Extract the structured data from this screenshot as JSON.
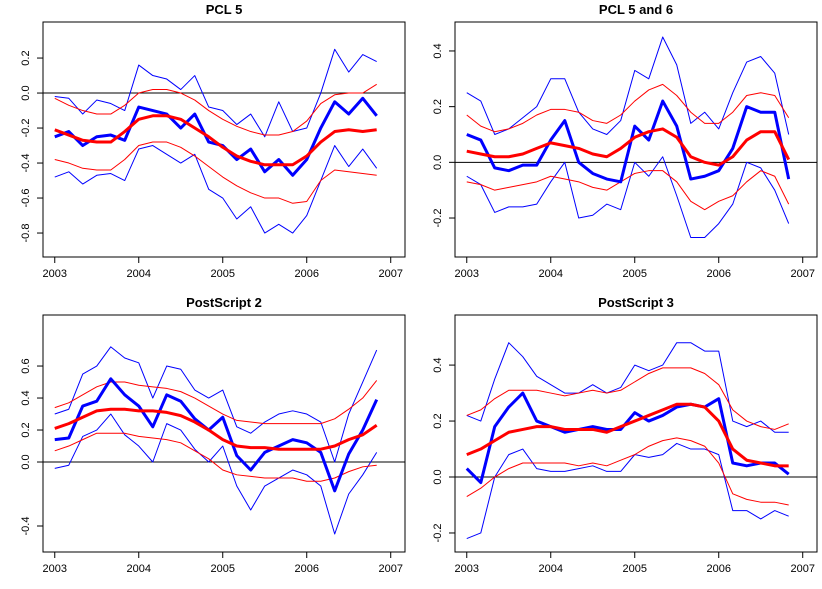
{
  "chart_data": [
    {
      "type": "line",
      "title": "PCL 5",
      "x": [
        2003,
        2003.167,
        2003.333,
        2003.5,
        2003.667,
        2003.833,
        2004,
        2004.167,
        2004.333,
        2004.5,
        2004.667,
        2004.833,
        2005,
        2005.167,
        2005.333,
        2005.5,
        2005.667,
        2005.833,
        2006,
        2006.167,
        2006.333,
        2006.5,
        2006.667,
        2006.833
      ],
      "xlim": [
        2002.86,
        2007.17
      ],
      "xticks": [
        2003,
        2004,
        2005,
        2006,
        2007
      ],
      "ylim": [
        -0.937,
        0.406
      ],
      "yticks": [
        0.2,
        {
          "value": 0,
          "label": "0.0"
        },
        -0.2,
        -0.4,
        -0.6,
        -0.8
      ],
      "hline": 0,
      "series": [
        {
          "color": "#0000ff",
          "linewidth": 1,
          "values": [
            -0.02,
            -0.03,
            -0.12,
            -0.04,
            -0.06,
            -0.1,
            0.16,
            0.1,
            0.08,
            0.02,
            0.1,
            -0.08,
            -0.1,
            -0.18,
            -0.12,
            -0.25,
            -0.05,
            -0.22,
            -0.2,
            0.0,
            0.25,
            0.12,
            0.22,
            0.18
          ]
        },
        {
          "color": "#0000ff",
          "linewidth": 1,
          "values": [
            -0.48,
            -0.45,
            -0.52,
            -0.47,
            -0.46,
            -0.5,
            -0.32,
            -0.3,
            -0.35,
            -0.4,
            -0.35,
            -0.55,
            -0.6,
            -0.72,
            -0.65,
            -0.8,
            -0.75,
            -0.8,
            -0.7,
            -0.5,
            -0.3,
            -0.42,
            -0.32,
            -0.43
          ]
        },
        {
          "color": "#ff0000",
          "linewidth": 1,
          "values": [
            -0.03,
            -0.07,
            -0.1,
            -0.12,
            -0.12,
            -0.07,
            0.0,
            0.02,
            0.02,
            0.0,
            -0.04,
            -0.1,
            -0.15,
            -0.19,
            -0.22,
            -0.24,
            -0.24,
            -0.22,
            -0.16,
            -0.06,
            -0.01,
            0.0,
            0.0,
            0.05
          ]
        },
        {
          "color": "#ff0000",
          "linewidth": 1,
          "values": [
            -0.38,
            -0.4,
            -0.43,
            -0.44,
            -0.44,
            -0.38,
            -0.3,
            -0.28,
            -0.28,
            -0.31,
            -0.36,
            -0.42,
            -0.48,
            -0.53,
            -0.57,
            -0.6,
            -0.6,
            -0.63,
            -0.62,
            -0.5,
            -0.44,
            -0.45,
            -0.46,
            -0.47
          ]
        },
        {
          "color": "#0000ff",
          "linewidth": 3,
          "values": [
            -0.25,
            -0.22,
            -0.3,
            -0.25,
            -0.24,
            -0.27,
            -0.08,
            -0.1,
            -0.12,
            -0.2,
            -0.12,
            -0.28,
            -0.3,
            -0.38,
            -0.32,
            -0.45,
            -0.38,
            -0.47,
            -0.38,
            -0.2,
            -0.05,
            -0.12,
            -0.03,
            -0.13
          ]
        },
        {
          "color": "#ff0000",
          "linewidth": 3,
          "values": [
            -0.21,
            -0.24,
            -0.27,
            -0.28,
            -0.28,
            -0.22,
            -0.15,
            -0.13,
            -0.13,
            -0.15,
            -0.2,
            -0.25,
            -0.31,
            -0.36,
            -0.39,
            -0.41,
            -0.41,
            -0.41,
            -0.36,
            -0.28,
            -0.22,
            -0.21,
            -0.22,
            -0.21
          ]
        }
      ]
    },
    {
      "type": "line",
      "title": "PCL 5 and 6",
      "x": [
        2003,
        2003.167,
        2003.333,
        2003.5,
        2003.667,
        2003.833,
        2004,
        2004.167,
        2004.333,
        2004.5,
        2004.667,
        2004.833,
        2005,
        2005.167,
        2005.333,
        2005.5,
        2005.667,
        2005.833,
        2006,
        2006.167,
        2006.333,
        2006.5,
        2006.667,
        2006.833
      ],
      "xlim": [
        2002.86,
        2007.17
      ],
      "xticks": [
        2003,
        2004,
        2005,
        2006,
        2007
      ],
      "ylim": [
        -0.34,
        0.504
      ],
      "yticks": [
        0.4,
        0.2,
        {
          "value": 0,
          "label": "0.0"
        },
        -0.2
      ],
      "hline": 0,
      "series": [
        {
          "color": "#0000ff",
          "linewidth": 1,
          "values": [
            0.25,
            0.22,
            0.1,
            0.12,
            0.16,
            0.2,
            0.3,
            0.3,
            0.18,
            0.12,
            0.1,
            0.15,
            0.33,
            0.3,
            0.45,
            0.35,
            0.14,
            0.18,
            0.12,
            0.25,
            0.36,
            0.38,
            0.32,
            0.1
          ]
        },
        {
          "color": "#0000ff",
          "linewidth": 1,
          "values": [
            -0.05,
            -0.08,
            -0.18,
            -0.16,
            -0.16,
            -0.15,
            -0.07,
            0.0,
            -0.2,
            -0.19,
            -0.15,
            -0.17,
            0.0,
            -0.05,
            0.02,
            -0.12,
            -0.27,
            -0.27,
            -0.22,
            -0.15,
            0.0,
            -0.02,
            -0.1,
            -0.22
          ]
        },
        {
          "color": "#ff0000",
          "linewidth": 1,
          "values": [
            0.17,
            0.13,
            0.11,
            0.12,
            0.14,
            0.17,
            0.19,
            0.19,
            0.18,
            0.15,
            0.14,
            0.17,
            0.22,
            0.26,
            0.28,
            0.24,
            0.18,
            0.14,
            0.14,
            0.18,
            0.24,
            0.25,
            0.24,
            0.16
          ]
        },
        {
          "color": "#ff0000",
          "linewidth": 1,
          "values": [
            -0.07,
            -0.08,
            -0.1,
            -0.09,
            -0.08,
            -0.07,
            -0.05,
            -0.06,
            -0.07,
            -0.09,
            -0.1,
            -0.07,
            -0.04,
            -0.03,
            -0.03,
            -0.07,
            -0.14,
            -0.17,
            -0.14,
            -0.12,
            -0.07,
            -0.03,
            -0.05,
            -0.15
          ]
        },
        {
          "color": "#0000ff",
          "linewidth": 3,
          "values": [
            0.1,
            0.08,
            -0.02,
            -0.03,
            -0.01,
            -0.01,
            0.08,
            0.15,
            0.0,
            -0.04,
            -0.06,
            -0.07,
            0.13,
            0.08,
            0.22,
            0.13,
            -0.06,
            -0.05,
            -0.03,
            0.05,
            0.2,
            0.18,
            0.18,
            -0.06
          ]
        },
        {
          "color": "#ff0000",
          "linewidth": 3,
          "values": [
            0.04,
            0.03,
            0.02,
            0.02,
            0.03,
            0.05,
            0.07,
            0.06,
            0.05,
            0.03,
            0.02,
            0.05,
            0.09,
            0.11,
            0.12,
            0.09,
            0.02,
            0.0,
            -0.01,
            0.02,
            0.08,
            0.11,
            0.11,
            0.01
          ]
        }
      ]
    },
    {
      "type": "line",
      "title": "PostScript 2",
      "x": [
        2003,
        2003.167,
        2003.333,
        2003.5,
        2003.667,
        2003.833,
        2004,
        2004.167,
        2004.333,
        2004.5,
        2004.667,
        2004.833,
        2005,
        2005.167,
        2005.333,
        2005.5,
        2005.667,
        2005.833,
        2006,
        2006.167,
        2006.333,
        2006.5,
        2006.667,
        2006.833
      ],
      "xlim": [
        2002.86,
        2007.17
      ],
      "xticks": [
        2003,
        2004,
        2005,
        2006,
        2007
      ],
      "ylim": [
        -0.5625,
        0.919
      ],
      "yticks": [
        0.6,
        0.4,
        0.2,
        {
          "value": 0,
          "label": "0.0"
        },
        -0.4
      ],
      "hline": 0,
      "series": [
        {
          "color": "#0000ff",
          "linewidth": 1,
          "values": [
            0.3,
            0.33,
            0.55,
            0.6,
            0.72,
            0.65,
            0.62,
            0.4,
            0.6,
            0.58,
            0.45,
            0.4,
            0.45,
            0.22,
            0.18,
            0.25,
            0.3,
            0.32,
            0.3,
            0.25,
            0.0,
            0.3,
            0.5,
            0.7
          ]
        },
        {
          "color": "#0000ff",
          "linewidth": 1,
          "values": [
            -0.04,
            -0.02,
            0.16,
            0.2,
            0.3,
            0.17,
            0.1,
            0.0,
            0.24,
            0.2,
            0.08,
            0.0,
            0.1,
            -0.15,
            -0.3,
            -0.15,
            -0.1,
            -0.05,
            -0.08,
            -0.15,
            -0.45,
            -0.2,
            -0.08,
            0.06
          ]
        },
        {
          "color": "#ff0000",
          "linewidth": 1,
          "values": [
            0.34,
            0.37,
            0.42,
            0.47,
            0.5,
            0.5,
            0.48,
            0.47,
            0.46,
            0.44,
            0.4,
            0.35,
            0.3,
            0.26,
            0.25,
            0.24,
            0.24,
            0.24,
            0.24,
            0.24,
            0.27,
            0.33,
            0.4,
            0.51
          ]
        },
        {
          "color": "#ff0000",
          "linewidth": 1,
          "values": [
            0.07,
            0.1,
            0.14,
            0.18,
            0.18,
            0.18,
            0.16,
            0.15,
            0.14,
            0.12,
            0.07,
            0.02,
            -0.05,
            -0.08,
            -0.09,
            -0.1,
            -0.1,
            -0.1,
            -0.12,
            -0.12,
            -0.1,
            -0.06,
            -0.03,
            -0.02
          ]
        },
        {
          "color": "#0000ff",
          "linewidth": 3,
          "values": [
            0.14,
            0.15,
            0.35,
            0.38,
            0.52,
            0.42,
            0.35,
            0.22,
            0.42,
            0.38,
            0.27,
            0.2,
            0.28,
            0.04,
            -0.05,
            0.06,
            0.1,
            0.14,
            0.12,
            0.06,
            -0.18,
            0.05,
            0.2,
            0.39
          ]
        },
        {
          "color": "#ff0000",
          "linewidth": 3,
          "values": [
            0.21,
            0.24,
            0.28,
            0.32,
            0.33,
            0.33,
            0.32,
            0.32,
            0.31,
            0.29,
            0.25,
            0.2,
            0.14,
            0.1,
            0.09,
            0.09,
            0.08,
            0.08,
            0.08,
            0.08,
            0.1,
            0.14,
            0.17,
            0.23
          ]
        }
      ]
    },
    {
      "type": "line",
      "title": "PostScript 3",
      "x": [
        2003,
        2003.167,
        2003.333,
        2003.5,
        2003.667,
        2003.833,
        2004,
        2004.167,
        2004.333,
        2004.5,
        2004.667,
        2004.833,
        2005,
        2005.167,
        2005.333,
        2005.5,
        2005.667,
        2005.833,
        2006,
        2006.167,
        2006.333,
        2006.5,
        2006.667,
        2006.833
      ],
      "xlim": [
        2002.86,
        2007.17
      ],
      "xticks": [
        2003,
        2004,
        2005,
        2006,
        2007
      ],
      "ylim": [
        -0.268,
        0.579
      ],
      "yticks": [
        0.4,
        0.2,
        {
          "value": 0,
          "label": "0.0"
        },
        -0.2
      ],
      "hline": 0,
      "series": [
        {
          "color": "#0000ff",
          "linewidth": 1,
          "values": [
            0.22,
            0.2,
            0.35,
            0.48,
            0.43,
            0.36,
            0.33,
            0.3,
            0.3,
            0.33,
            0.3,
            0.32,
            0.4,
            0.38,
            0.4,
            0.48,
            0.48,
            0.45,
            0.45,
            0.2,
            0.18,
            0.2,
            0.16,
            0.16
          ]
        },
        {
          "color": "#0000ff",
          "linewidth": 1,
          "values": [
            -0.22,
            -0.2,
            0.0,
            0.08,
            0.1,
            0.03,
            0.02,
            0.02,
            0.03,
            0.04,
            0.02,
            0.02,
            0.08,
            0.07,
            0.08,
            0.12,
            0.1,
            0.1,
            0.08,
            -0.12,
            -0.12,
            -0.15,
            -0.12,
            -0.14
          ]
        },
        {
          "color": "#ff0000",
          "linewidth": 1,
          "values": [
            0.22,
            0.24,
            0.28,
            0.31,
            0.31,
            0.31,
            0.3,
            0.29,
            0.3,
            0.31,
            0.3,
            0.31,
            0.34,
            0.37,
            0.39,
            0.39,
            0.39,
            0.37,
            0.33,
            0.24,
            0.2,
            0.18,
            0.17,
            0.19
          ]
        },
        {
          "color": "#ff0000",
          "linewidth": 1,
          "values": [
            -0.07,
            -0.04,
            0.0,
            0.03,
            0.05,
            0.05,
            0.05,
            0.05,
            0.04,
            0.05,
            0.04,
            0.06,
            0.08,
            0.11,
            0.13,
            0.14,
            0.13,
            0.11,
            0.05,
            -0.06,
            -0.08,
            -0.09,
            -0.09,
            -0.1
          ]
        },
        {
          "color": "#0000ff",
          "linewidth": 3,
          "values": [
            0.03,
            -0.02,
            0.18,
            0.25,
            0.3,
            0.2,
            0.18,
            0.16,
            0.17,
            0.18,
            0.17,
            0.17,
            0.23,
            0.2,
            0.22,
            0.25,
            0.26,
            0.25,
            0.28,
            0.05,
            0.04,
            0.05,
            0.05,
            0.01
          ]
        },
        {
          "color": "#ff0000",
          "linewidth": 3,
          "values": [
            0.08,
            0.1,
            0.13,
            0.16,
            0.17,
            0.18,
            0.18,
            0.17,
            0.17,
            0.17,
            0.16,
            0.18,
            0.2,
            0.22,
            0.24,
            0.26,
            0.26,
            0.25,
            0.2,
            0.1,
            0.06,
            0.05,
            0.04,
            0.04
          ]
        }
      ]
    }
  ]
}
